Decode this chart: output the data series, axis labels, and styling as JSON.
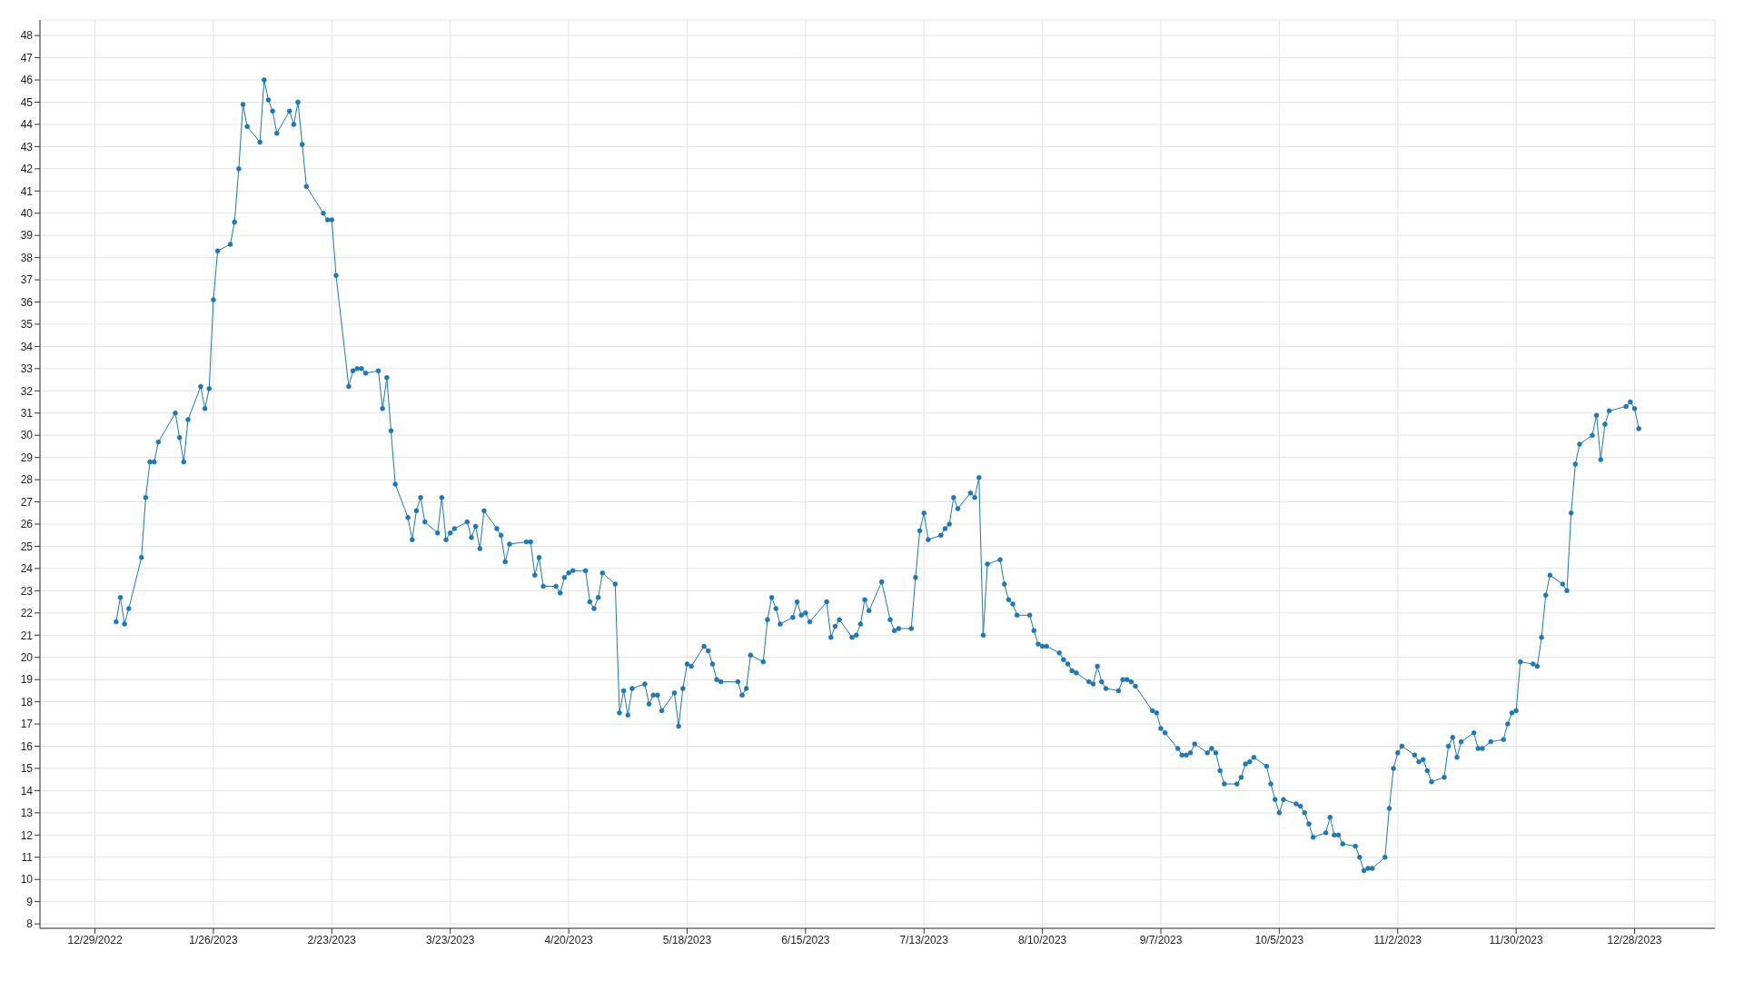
{
  "chart_data": {
    "type": "line",
    "x": [
      "2023-01-03",
      "2023-01-04",
      "2023-01-05",
      "2023-01-06",
      "2023-01-09",
      "2023-01-10",
      "2023-01-11",
      "2023-01-12",
      "2023-01-13",
      "2023-01-17",
      "2023-01-18",
      "2023-01-19",
      "2023-01-20",
      "2023-01-23",
      "2023-01-24",
      "2023-01-25",
      "2023-01-26",
      "2023-01-27",
      "2023-01-30",
      "2023-01-31",
      "2023-02-01",
      "2023-02-02",
      "2023-02-03",
      "2023-02-06",
      "2023-02-07",
      "2023-02-08",
      "2023-02-09",
      "2023-02-10",
      "2023-02-13",
      "2023-02-14",
      "2023-02-15",
      "2023-02-16",
      "2023-02-17",
      "2023-02-21",
      "2023-02-22",
      "2023-02-23",
      "2023-02-24",
      "2023-02-27",
      "2023-02-28",
      "2023-03-01",
      "2023-03-02",
      "2023-03-03",
      "2023-03-06",
      "2023-03-07",
      "2023-03-08",
      "2023-03-09",
      "2023-03-10",
      "2023-03-13",
      "2023-03-14",
      "2023-03-15",
      "2023-03-16",
      "2023-03-17",
      "2023-03-20",
      "2023-03-21",
      "2023-03-22",
      "2023-03-23",
      "2023-03-24",
      "2023-03-27",
      "2023-03-28",
      "2023-03-29",
      "2023-03-30",
      "2023-03-31",
      "2023-04-03",
      "2023-04-04",
      "2023-04-05",
      "2023-04-06",
      "2023-04-10",
      "2023-04-11",
      "2023-04-12",
      "2023-04-13",
      "2023-04-14",
      "2023-04-17",
      "2023-04-18",
      "2023-04-19",
      "2023-04-20",
      "2023-04-21",
      "2023-04-24",
      "2023-04-25",
      "2023-04-26",
      "2023-04-27",
      "2023-04-28",
      "2023-05-01",
      "2023-05-02",
      "2023-05-03",
      "2023-05-04",
      "2023-05-05",
      "2023-05-08",
      "2023-05-09",
      "2023-05-10",
      "2023-05-11",
      "2023-05-12",
      "2023-05-15",
      "2023-05-16",
      "2023-05-17",
      "2023-05-18",
      "2023-05-19",
      "2023-05-22",
      "2023-05-23",
      "2023-05-24",
      "2023-05-25",
      "2023-05-26",
      "2023-05-30",
      "2023-05-31",
      "2023-06-01",
      "2023-06-02",
      "2023-06-05",
      "2023-06-06",
      "2023-06-07",
      "2023-06-08",
      "2023-06-09",
      "2023-06-12",
      "2023-06-13",
      "2023-06-14",
      "2023-06-15",
      "2023-06-16",
      "2023-06-20",
      "2023-06-21",
      "2023-06-22",
      "2023-06-23",
      "2023-06-26",
      "2023-06-27",
      "2023-06-28",
      "2023-06-29",
      "2023-06-30",
      "2023-07-03",
      "2023-07-05",
      "2023-07-06",
      "2023-07-07",
      "2023-07-10",
      "2023-07-11",
      "2023-07-12",
      "2023-07-13",
      "2023-07-14",
      "2023-07-17",
      "2023-07-18",
      "2023-07-19",
      "2023-07-20",
      "2023-07-21",
      "2023-07-24",
      "2023-07-25",
      "2023-07-26",
      "2023-07-27",
      "2023-07-28",
      "2023-07-31",
      "2023-08-01",
      "2023-08-02",
      "2023-08-03",
      "2023-08-04",
      "2023-08-07",
      "2023-08-08",
      "2023-08-09",
      "2023-08-10",
      "2023-08-11",
      "2023-08-14",
      "2023-08-15",
      "2023-08-16",
      "2023-08-17",
      "2023-08-18",
      "2023-08-21",
      "2023-08-22",
      "2023-08-23",
      "2023-08-24",
      "2023-08-25",
      "2023-08-28",
      "2023-08-29",
      "2023-08-30",
      "2023-08-31",
      "2023-09-01",
      "2023-09-05",
      "2023-09-06",
      "2023-09-07",
      "2023-09-08",
      "2023-09-11",
      "2023-09-12",
      "2023-09-13",
      "2023-09-14",
      "2023-09-15",
      "2023-09-18",
      "2023-09-19",
      "2023-09-20",
      "2023-09-21",
      "2023-09-22",
      "2023-09-25",
      "2023-09-26",
      "2023-09-27",
      "2023-09-28",
      "2023-09-29",
      "2023-10-02",
      "2023-10-03",
      "2023-10-04",
      "2023-10-05",
      "2023-10-06",
      "2023-10-09",
      "2023-10-10",
      "2023-10-11",
      "2023-10-12",
      "2023-10-13",
      "2023-10-16",
      "2023-10-17",
      "2023-10-18",
      "2023-10-19",
      "2023-10-20",
      "2023-10-23",
      "2023-10-24",
      "2023-10-25",
      "2023-10-26",
      "2023-10-27",
      "2023-10-30",
      "2023-10-31",
      "2023-11-01",
      "2023-11-02",
      "2023-11-03",
      "2023-11-06",
      "2023-11-07",
      "2023-11-08",
      "2023-11-09",
      "2023-11-10",
      "2023-11-13",
      "2023-11-14",
      "2023-11-15",
      "2023-11-16",
      "2023-11-17",
      "2023-11-20",
      "2023-11-21",
      "2023-11-22",
      "2023-11-24",
      "2023-11-27",
      "2023-11-28",
      "2023-11-29",
      "2023-11-30",
      "2023-12-01",
      "2023-12-04",
      "2023-12-05",
      "2023-12-06",
      "2023-12-07",
      "2023-12-08",
      "2023-12-11",
      "2023-12-12",
      "2023-12-13",
      "2023-12-14",
      "2023-12-15",
      "2023-12-18",
      "2023-12-19",
      "2023-12-20",
      "2023-12-21",
      "2023-12-22",
      "2023-12-26",
      "2023-12-27",
      "2023-12-28",
      "2023-12-29"
    ],
    "series": [
      {
        "color": "#1f77b4",
        "values": [
          21.6,
          22.7,
          21.5,
          22.2,
          24.5,
          27.2,
          28.8,
          28.8,
          29.7,
          31.0,
          29.9,
          28.8,
          30.7,
          32.2,
          31.2,
          32.1,
          36.1,
          38.3,
          38.6,
          39.6,
          42.0,
          44.9,
          43.9,
          43.2,
          46.0,
          45.1,
          44.6,
          43.6,
          44.6,
          44.0,
          45.0,
          43.1,
          41.2,
          40.0,
          39.7,
          39.7,
          37.2,
          32.2,
          32.9,
          33.0,
          33.0,
          32.8,
          32.9,
          31.2,
          32.6,
          30.2,
          27.8,
          26.3,
          25.3,
          26.6,
          27.2,
          26.1,
          25.6,
          27.2,
          25.3,
          25.6,
          25.8,
          26.1,
          25.4,
          25.9,
          24.9,
          26.6,
          25.8,
          25.5,
          24.3,
          25.1,
          25.2,
          25.2,
          23.7,
          24.5,
          23.2,
          23.2,
          22.9,
          23.6,
          23.8,
          23.9,
          23.9,
          22.5,
          22.2,
          22.7,
          23.8,
          23.3,
          17.5,
          18.5,
          17.4,
          18.6,
          18.8,
          17.9,
          18.3,
          18.3,
          17.6,
          18.4,
          16.9,
          18.6,
          19.7,
          19.6,
          20.5,
          20.3,
          19.7,
          19.0,
          18.9,
          18.9,
          18.3,
          18.6,
          20.1,
          19.8,
          21.7,
          22.7,
          22.2,
          21.5,
          21.8,
          22.5,
          21.9,
          22.0,
          21.6,
          22.5,
          20.9,
          21.4,
          21.7,
          20.9,
          21.0,
          21.5,
          22.6,
          22.1,
          23.4,
          21.7,
          21.2,
          21.3,
          21.3,
          23.6,
          25.7,
          26.5,
          25.3,
          25.5,
          25.8,
          26.0,
          27.2,
          26.7,
          27.4,
          27.2,
          28.1,
          21.0,
          24.2,
          24.4,
          23.3,
          22.6,
          22.4,
          21.9,
          21.9,
          21.2,
          20.6,
          20.5,
          20.5,
          20.2,
          19.9,
          19.7,
          19.4,
          19.3,
          18.9,
          18.8,
          19.6,
          18.9,
          18.6,
          18.5,
          19.0,
          19.0,
          18.9,
          18.7,
          17.6,
          17.5,
          16.8,
          16.6,
          15.9,
          15.6,
          15.6,
          15.7,
          16.1,
          15.7,
          15.9,
          15.7,
          14.9,
          14.3,
          14.3,
          14.6,
          15.2,
          15.3,
          15.5,
          15.1,
          14.3,
          13.6,
          13.0,
          13.6,
          13.4,
          13.3,
          13.0,
          12.5,
          11.9,
          12.1,
          12.8,
          12.0,
          12.0,
          11.6,
          11.5,
          11.0,
          10.4,
          10.5,
          10.5,
          11.0,
          13.2,
          15.0,
          15.7,
          16.0,
          15.6,
          15.3,
          15.4,
          14.9,
          14.4,
          14.6,
          16.0,
          16.4,
          15.5,
          16.2,
          16.6,
          15.9,
          15.9,
          16.2,
          16.3,
          17.0,
          17.5,
          17.6,
          19.8,
          19.7,
          19.6,
          20.9,
          22.8,
          23.7,
          23.3,
          23.0,
          26.5,
          28.7,
          29.6,
          30.0,
          30.9,
          28.9,
          30.5,
          31.1,
          31.3,
          31.5,
          31.2,
          30.3
        ]
      }
    ],
    "xlim": [
      "2022-12-16",
      "2024-01-16"
    ],
    "xticks": [
      {
        "value": "2022-12-29",
        "label": "12/29/2022"
      },
      {
        "value": "2023-01-26",
        "label": "1/26/2023"
      },
      {
        "value": "2023-02-23",
        "label": "2/23/2023"
      },
      {
        "value": "2023-03-23",
        "label": "3/23/2023"
      },
      {
        "value": "2023-04-20",
        "label": "4/20/2023"
      },
      {
        "value": "2023-05-18",
        "label": "5/18/2023"
      },
      {
        "value": "2023-06-15",
        "label": "6/15/2023"
      },
      {
        "value": "2023-07-13",
        "label": "7/13/2023"
      },
      {
        "value": "2023-08-10",
        "label": "8/10/2023"
      },
      {
        "value": "2023-09-07",
        "label": "9/7/2023"
      },
      {
        "value": "2023-10-05",
        "label": "10/5/2023"
      },
      {
        "value": "2023-11-02",
        "label": "11/2/2023"
      },
      {
        "value": "2023-11-30",
        "label": "11/30/2023"
      },
      {
        "value": "2023-12-28",
        "label": "12/28/2023"
      }
    ],
    "ylim": [
      7.8,
      48.7
    ],
    "yticks": [
      8,
      9,
      10,
      11,
      12,
      13,
      14,
      15,
      16,
      17,
      18,
      19,
      20,
      21,
      22,
      23,
      24,
      25,
      26,
      27,
      28,
      29,
      30,
      31,
      32,
      33,
      34,
      35,
      36,
      37,
      38,
      39,
      40,
      41,
      42,
      43,
      44,
      45,
      46,
      47,
      48
    ],
    "grid": true,
    "marker": "circle",
    "line_style": "solid"
  }
}
